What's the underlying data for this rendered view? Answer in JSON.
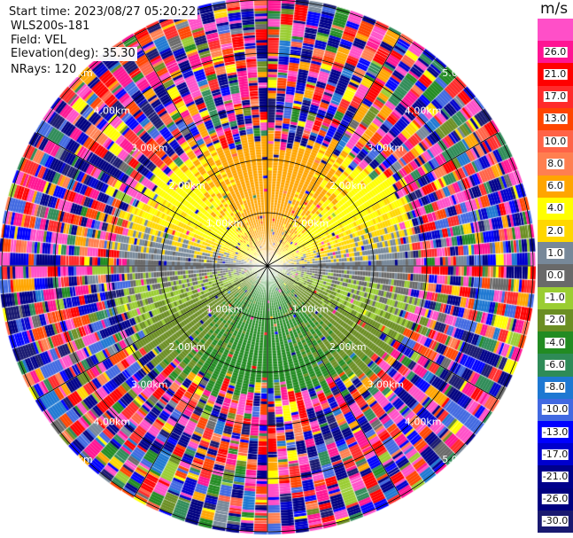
{
  "info": {
    "start_time": "Start time: 2023/08/27 05:20:22",
    "instrument": "WLS200s-181",
    "field": "Field: VEL",
    "elevation": "Elevation(deg): 35.30",
    "nrays": "NRays: 120"
  },
  "chart_data": {
    "type": "heatmap",
    "projection": "polar PPI",
    "field": "VEL",
    "nrays": 120,
    "elevation_deg": 35.3,
    "range_km": [
      0,
      5
    ],
    "range_rings": [
      {
        "km": 1,
        "label": "1.00km"
      },
      {
        "km": 2,
        "label": "2.00km"
      },
      {
        "km": 3,
        "label": "3.00km"
      },
      {
        "km": 4,
        "label": "4.00km"
      },
      {
        "km": 5,
        "label": "5.00km"
      }
    ],
    "spoke_step_deg": 30,
    "colorbar": {
      "unit": "m/s",
      "bins": [
        {
          "label": "",
          "color": "#ff4fc8",
          "lo": 26,
          "hi": 30
        },
        {
          "label": "26.0",
          "color": "#ff1493",
          "lo": 21,
          "hi": 26
        },
        {
          "label": "21.0",
          "color": "#ff0000",
          "lo": 17,
          "hi": 21
        },
        {
          "label": "17.0",
          "color": "#ff2a2a",
          "lo": 13,
          "hi": 17
        },
        {
          "label": "13.0",
          "color": "#ff4500",
          "lo": 10,
          "hi": 13
        },
        {
          "label": "10.0",
          "color": "#ff6347",
          "lo": 8,
          "hi": 10
        },
        {
          "label": "8.0",
          "color": "#ff7f50",
          "lo": 6,
          "hi": 8
        },
        {
          "label": "6.0",
          "color": "#ffa500",
          "lo": 4,
          "hi": 6
        },
        {
          "label": "4.0",
          "color": "#ffff00",
          "lo": 2,
          "hi": 4
        },
        {
          "label": "2.0",
          "color": "#ffd700",
          "lo": 1,
          "hi": 2
        },
        {
          "label": "1.0",
          "color": "#778899",
          "lo": 0,
          "hi": 1
        },
        {
          "label": "0.0",
          "color": "#696969",
          "lo": -1,
          "hi": 0
        },
        {
          "label": "-1.0",
          "color": "#9acd32",
          "lo": -2,
          "hi": -1
        },
        {
          "label": "-2.0",
          "color": "#6b8e23",
          "lo": -4,
          "hi": -2
        },
        {
          "label": "-4.0",
          "color": "#228b22",
          "lo": -6,
          "hi": -4
        },
        {
          "label": "-6.0",
          "color": "#2e8b57",
          "lo": -8,
          "hi": -6
        },
        {
          "label": "-8.0",
          "color": "#1e78d2",
          "lo": -10,
          "hi": -8
        },
        {
          "label": "-10.0",
          "color": "#4169e1",
          "lo": -13,
          "hi": -10
        },
        {
          "label": "-13.0",
          "color": "#0000ff",
          "lo": -17,
          "hi": -13
        },
        {
          "label": "-17.0",
          "color": "#0000cd",
          "lo": -21,
          "hi": -17
        },
        {
          "label": "-21.0",
          "color": "#00008b",
          "lo": -26,
          "hi": -21
        },
        {
          "label": "-26.0",
          "color": "#000080",
          "lo": -30,
          "hi": -26
        },
        {
          "label": "-30.0",
          "color": "#191970",
          "lo": -34,
          "hi": -30
        }
      ]
    }
  }
}
